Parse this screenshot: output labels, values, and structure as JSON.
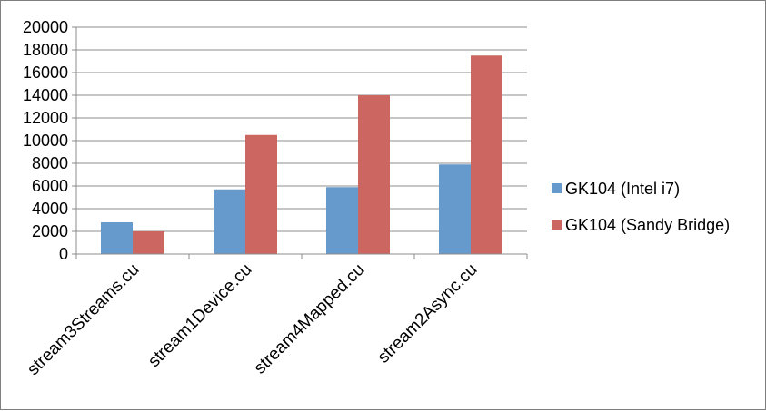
{
  "chart_data": {
    "type": "bar",
    "categories": [
      "stream3Streams.cu",
      "stream1Device.cu",
      "stream4Mapped.cu",
      "stream2Async.cu"
    ],
    "series": [
      {
        "name": "GK104 (Intel i7)",
        "values": [
          2800,
          5700,
          5900,
          7900
        ],
        "color": "#6699cc"
      },
      {
        "name": "GK104 (Sandy Bridge)",
        "values": [
          2000,
          10500,
          14000,
          17500
        ],
        "color": "#cc6660"
      }
    ],
    "yticks": [
      "0",
      "2000",
      "4000",
      "6000",
      "8000",
      "10000",
      "12000",
      "14000",
      "16000",
      "18000",
      "20000"
    ],
    "ylim": [
      0,
      20000
    ],
    "grid": true,
    "legend": "right"
  }
}
